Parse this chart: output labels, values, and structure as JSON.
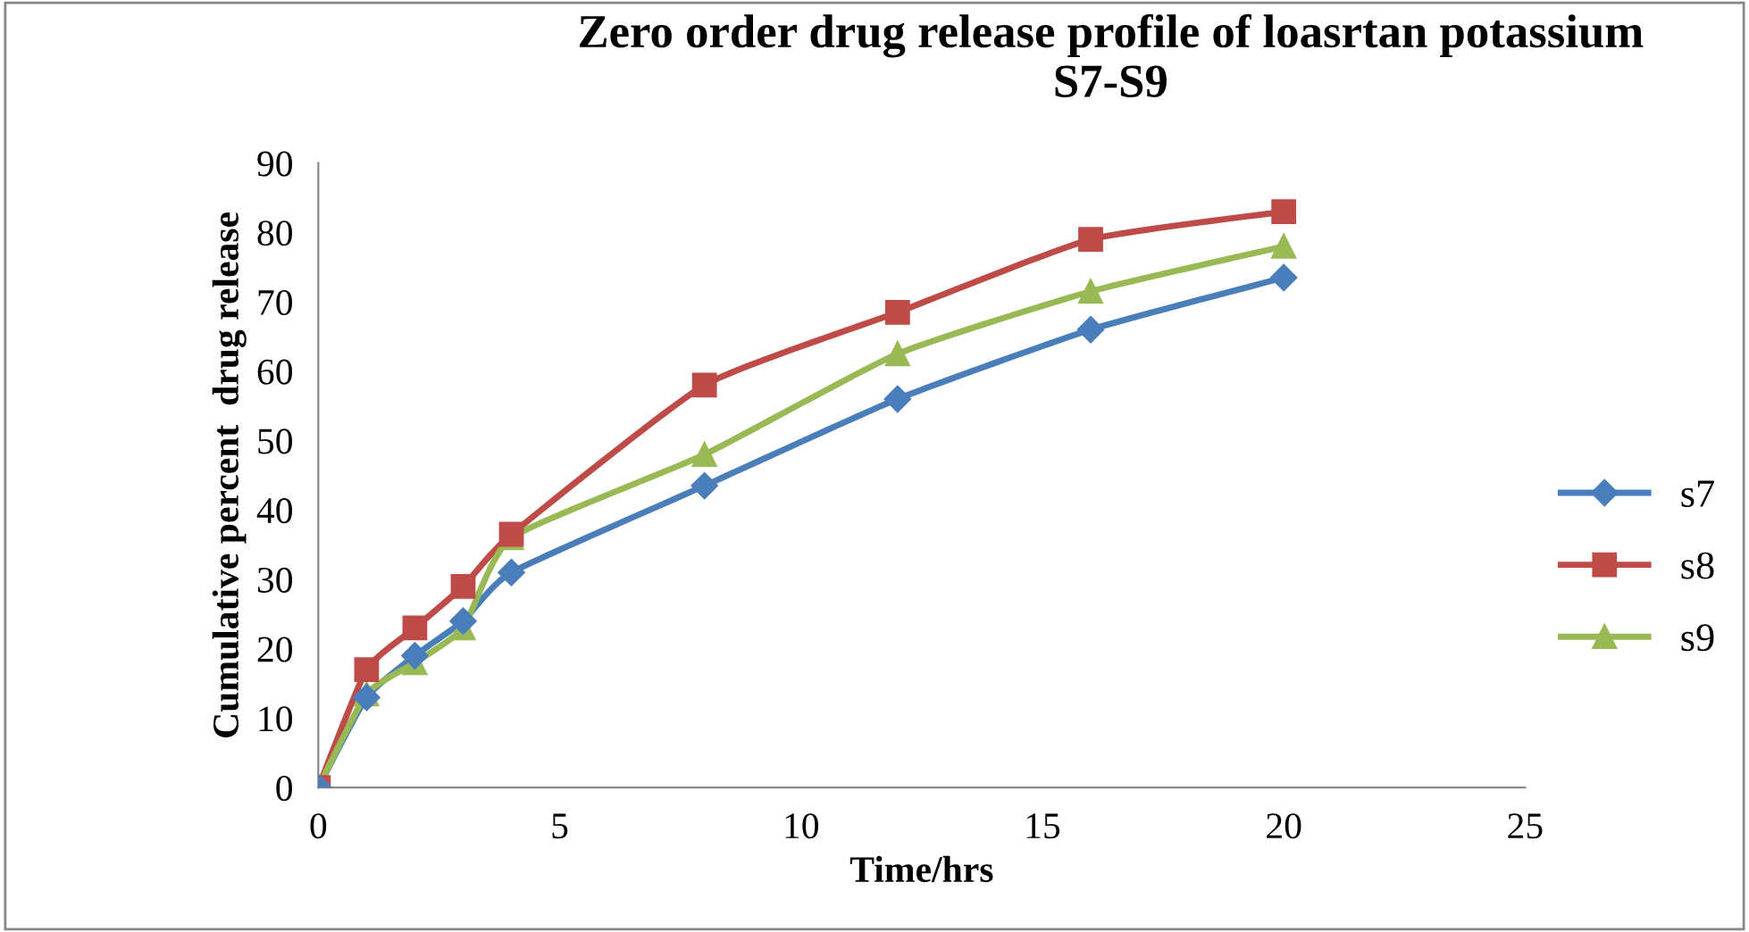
{
  "chart_data": {
    "type": "line",
    "title": "Zero order drug release profile of loasrtan potassium\nS7-S9",
    "xlabel": "Time/hrs",
    "ylabel": "Cumulative percent  drug release",
    "x": [
      0,
      1,
      2,
      3,
      4,
      8,
      12,
      16,
      20
    ],
    "series": [
      {
        "name": "s7",
        "color": "#4a7ebb",
        "marker": "diamond",
        "values": [
          0,
          13,
          19,
          24,
          31,
          43.5,
          56,
          66,
          73.5
        ]
      },
      {
        "name": "s8",
        "color": "#be4b48",
        "marker": "square",
        "values": [
          0,
          17,
          23,
          29,
          36.5,
          58,
          68.5,
          79,
          83
        ]
      },
      {
        "name": "s9",
        "color": "#98b954",
        "marker": "triangle",
        "values": [
          0,
          13.5,
          18,
          23,
          36,
          48,
          62.5,
          71.5,
          78
        ]
      }
    ],
    "xlim": [
      0,
      25
    ],
    "xticks": [
      0,
      5,
      10,
      15,
      20,
      25
    ],
    "ylim": [
      0,
      90
    ],
    "yticks": [
      0,
      10,
      20,
      30,
      40,
      50,
      60,
      70,
      80,
      90
    ],
    "grid": false,
    "legend": "right",
    "line_style": "solid"
  }
}
